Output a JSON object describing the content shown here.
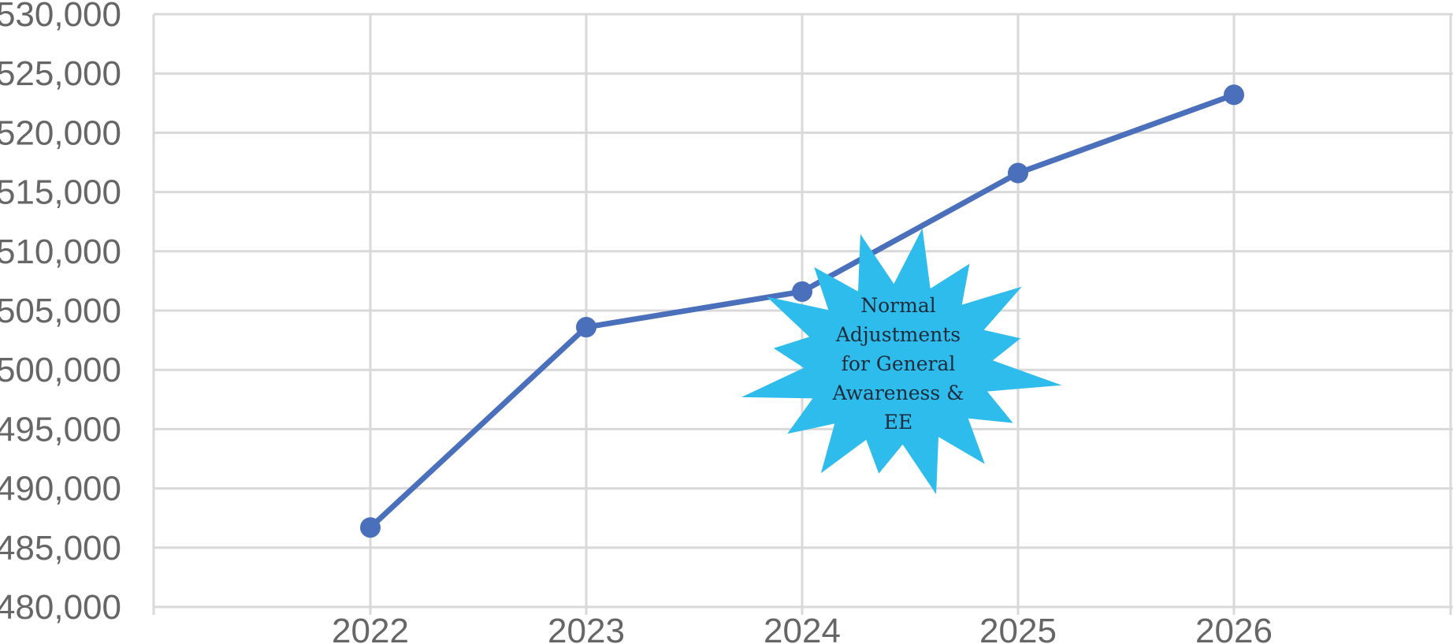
{
  "chart_data": {
    "type": "line",
    "title": "",
    "xlabel": "",
    "ylabel": "",
    "x": [
      "2022",
      "2023",
      "2024",
      "2025",
      "2026"
    ],
    "series": [
      {
        "values": [
          486700,
          503600,
          506600,
          516600,
          523200
        ]
      }
    ],
    "ylim": [
      480000,
      530000
    ],
    "y_ticks": [
      "480,000",
      "485,000",
      "490,000",
      "495,000",
      "500,000",
      "505,000",
      "510,000",
      "515,000",
      "520,000",
      "525,000",
      "530,000"
    ],
    "grid": true,
    "legend": "none",
    "annotation": {
      "lines": [
        "Normal",
        "Adjustments",
        "for General",
        "Awareness &",
        "EE"
      ]
    }
  },
  "colors": {
    "series": "#4a6fbb",
    "callout": "#2ebcec",
    "grid": "#d9d9d9",
    "text": "#666666"
  }
}
